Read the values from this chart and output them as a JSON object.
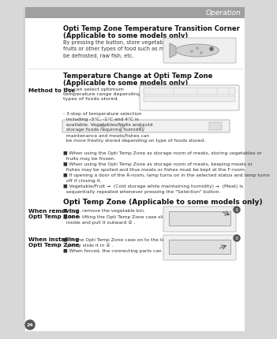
{
  "page_num": "24",
  "header_text": "Operation",
  "header_bg": "#a0a0a0",
  "header_text_color": "#ffffff",
  "bg_color": "#d8d8d8",
  "content_bg": "#ffffff",
  "left_bar_color": "#b0b0b0",
  "section1_title_line1": "Opti Temp Zone Temperature Transition Corner",
  "section1_title_line2": "(Applicable to some models only)",
  "section1_body": "By pressing the button, store vegetables,\nfruits or other types of food such as meat to\nbe defrosted, raw fish, etc.",
  "section2_title_line1": "Temperature Change at Opti Temp Zone",
  "section2_title_line2": "(Applicable to some models only)",
  "method_label_line1": "Method to Use",
  "section2_body1_line1": "You can select optimum",
  "section2_body1_line2": "temperature range depending on",
  "section2_body1_line3": "types of foods stored.",
  "section2_body2": "- 3-step of temperature selection\n  including -3°C, -1°C and 4°C is\n  available. Vegetables/fruits and cold\n  storage foods requiring humidity\n  maintenance and meats/fishes can\n  be more freshly stored depending on type of foods stored.",
  "bullet1": "■ When using the Opti Temp Zone as storage room of meats, storing vegetables or\n  fruits may be frozen.",
  "bullet2": "■ When using the Opti Temp Zone as storage room of meats, keeping meats or\n  fishes may be spoiled and thus meats or fishes must be kept at the F-room.",
  "bullet3": "■ If opening a door of the R-room, lamp turns on in the selected status and lamp turns\n  off if closing it.",
  "bullet4": "■ Vegetable/Fruit →  (Cold storage while maintaining humidity) →  (Meat) is\n  sequentially repeated whenever pressing the \"Selection\" button.",
  "section3_title": "Opti Temp Zone (Applicable to some models only)",
  "when_removing_line1": "When removing",
  "when_removing_line2": "Opti Temp Zone",
  "removing_body": "■ First, remove the vegetable bin.\n■ After lifting the Opti Temp Zone case slightly ①, reach\n  inside and pull it outward ② .",
  "when_installing_line1": "When installing",
  "when_installing_line2": "Opti Temp Zone",
  "installing_body": "■ Fit the Opti Temp Zone case on to the ledge ① and\n  gently slide it in ② .\n■ When forced, the connecting parts can be damaged."
}
